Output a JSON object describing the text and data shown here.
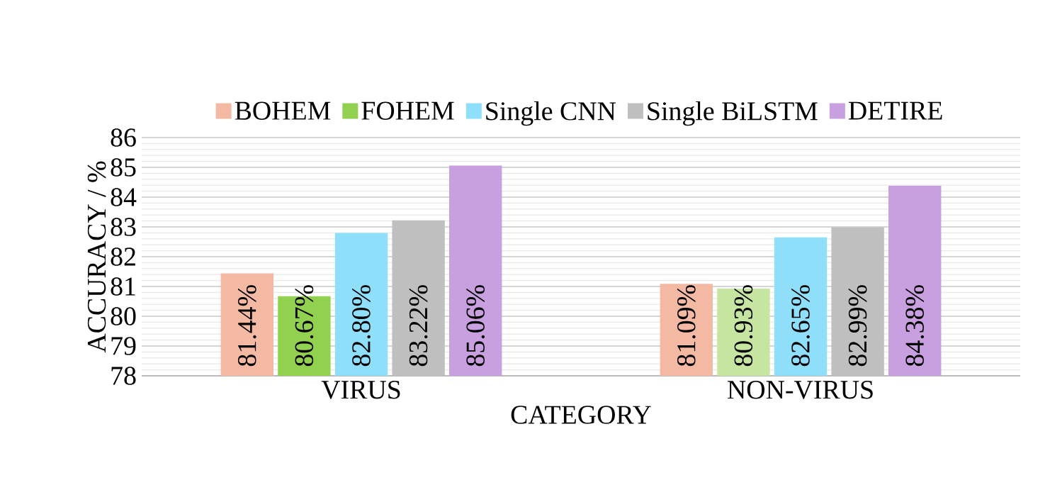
{
  "chart_data": {
    "type": "bar",
    "xlabel": "CATEGORY",
    "ylabel": "ACCURACY / %",
    "categories": [
      "VIRUS",
      "NON-VIRUS"
    ],
    "series": [
      {
        "name": "BOHEM",
        "color": "#f4b9a3",
        "values": [
          81.44,
          81.09
        ],
        "value_labels": [
          "81.44%",
          "81.09%"
        ]
      },
      {
        "name": "FOHEM",
        "color": "#92d050",
        "colors": [
          "#92d050",
          "#c5e5a0"
        ],
        "values": [
          80.67,
          80.93
        ],
        "value_labels": [
          "80.67%",
          "80.93%"
        ]
      },
      {
        "name": "Single CNN",
        "color": "#8fdffa",
        "values": [
          82.8,
          82.65
        ],
        "value_labels": [
          "82.80%",
          "82.65%"
        ]
      },
      {
        "name": "Single BiLSTM",
        "color": "#bfbfbf",
        "values": [
          83.22,
          82.99
        ],
        "value_labels": [
          "83.22%",
          "82.99%"
        ]
      },
      {
        "name": "DETIRE",
        "color": "#c8a0e0",
        "values": [
          85.06,
          84.38
        ],
        "value_labels": [
          "85.06%",
          "84.38%"
        ]
      }
    ],
    "ylim": [
      78,
      86
    ],
    "yticks": [
      78,
      79,
      80,
      81,
      82,
      83,
      84,
      85,
      86
    ],
    "grid": "y",
    "legend": "top"
  }
}
